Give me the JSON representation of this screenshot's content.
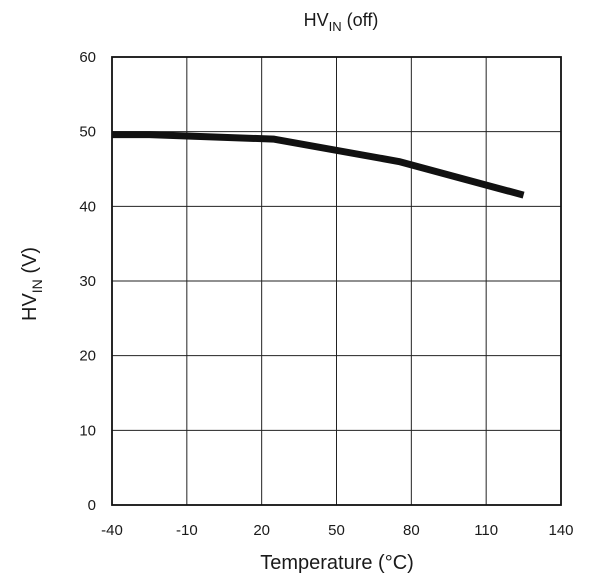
{
  "chart_data": {
    "type": "line",
    "title": "HV",
    "title_sub": "IN",
    "title_suffix": " (off)",
    "xlabel": "Temperature (°C)",
    "ylabel": "HV",
    "ylabel_sub": "IN",
    "ylabel_suffix": " (V)",
    "xlim": [
      -40,
      140
    ],
    "ylim": [
      0,
      60
    ],
    "xticks": [
      -40,
      -10,
      20,
      50,
      80,
      110,
      140
    ],
    "yticks": [
      0,
      10,
      20,
      30,
      40,
      50,
      60
    ],
    "grid": true,
    "legend": "none",
    "series": [
      {
        "color": "#111111",
        "x": [
          -40,
          -25,
          25,
          75,
          125
        ],
        "y": [
          49.6,
          49.6,
          49.0,
          46.0,
          41.5
        ]
      }
    ]
  }
}
